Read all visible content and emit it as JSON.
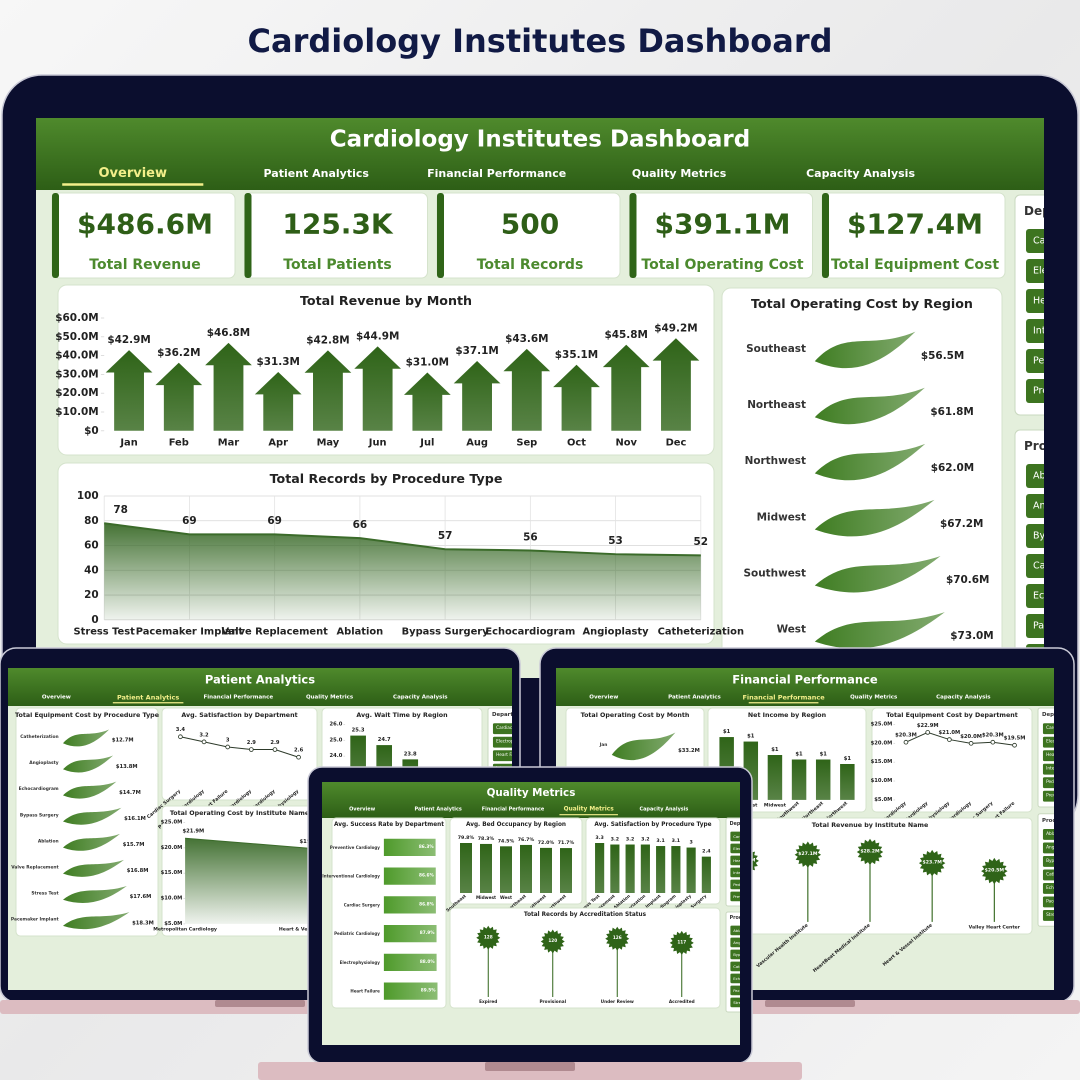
{
  "page_title": "Cardiology Institutes Dashboard",
  "tabs": [
    "Overview",
    "Patient Analytics",
    "Financial Performance",
    "Quality Metrics",
    "Capacity Analysis"
  ],
  "slicers": [
    {
      "title": "Department",
      "items": [
        "Cardiac Surgery",
        "Electrophysiology",
        "Heart Failure",
        "Interventional Cardiology",
        "Pediatric Cardiology",
        "Preventive Cardiology"
      ]
    },
    {
      "title": "Procedure",
      "items": [
        "Ablation",
        "Angioplasty",
        "Bypass Surgery",
        "Catheterization",
        "Echocardiogram",
        "Pacemaker Implant",
        "Stress Test"
      ]
    }
  ],
  "screens": [
    {
      "title": "Cardiology Institutes Dashboard",
      "active_tab": 0,
      "kpis": [
        {
          "value": "$486.6M",
          "label": "Total Revenue"
        },
        {
          "value": "125.3K",
          "label": "Total Patients"
        },
        {
          "value": "500",
          "label": "Total Records"
        },
        {
          "value": "$391.1M",
          "label": "Total Operating Cost"
        },
        {
          "value": "$127.4M",
          "label": "Total Equipment Cost"
        }
      ],
      "charts": [
        {
          "type": "bar",
          "shape": "arrow",
          "title": "Total Revenue by Month",
          "color": "#2f6418",
          "categories": [
            "Jan",
            "Feb",
            "Mar",
            "Apr",
            "May",
            "Jun",
            "Jul",
            "Aug",
            "Sep",
            "Oct",
            "Nov",
            "Dec"
          ],
          "values": [
            42.9,
            36.2,
            46.8,
            31.3,
            42.8,
            44.9,
            31.0,
            37.1,
            43.6,
            35.1,
            45.8,
            49.2
          ],
          "value_labels": [
            "$42.9M",
            "$36.2M",
            "$46.8M",
            "$31.3M",
            "$42.8M",
            "$44.9M",
            "$31.0M",
            "$37.1M",
            "$43.6M",
            "$35.1M",
            "$45.8M",
            "$49.2M"
          ],
          "ylim": [
            0,
            60
          ],
          "yticks": [
            {
              "value": 0,
              "label": "$0"
            },
            {
              "value": 10,
              "label": "$10.0M"
            },
            {
              "value": 20,
              "label": "$20.0M"
            },
            {
              "value": 30,
              "label": "$30.0M"
            },
            {
              "value": 40,
              "label": "$40.0M"
            },
            {
              "value": 50,
              "label": "$50.0M"
            },
            {
              "value": 60,
              "label": "$60.0M"
            }
          ]
        },
        {
          "type": "hbar",
          "shape": "leaf",
          "title": "Total Operating Cost by Region",
          "color": "#3f7d22",
          "categories": [
            "Southeast",
            "Northeast",
            "Northwest",
            "Midwest",
            "Southwest",
            "West"
          ],
          "values": [
            56.5,
            61.8,
            62.0,
            67.2,
            70.6,
            73.0
          ],
          "value_labels": [
            "$56.5M",
            "$61.8M",
            "$62.0M",
            "$67.2M",
            "$70.6M",
            "$73.0M"
          ]
        },
        {
          "type": "area",
          "title": "Total Records by Procedure Type",
          "color": "#3b6b2a",
          "grid": true,
          "categories": [
            "Stress Test",
            "Pacemaker Implant",
            "Valve Replacement",
            "Ablation",
            "Bypass Surgery",
            "Echocardiogram",
            "Angioplasty",
            "Catheterization"
          ],
          "values": [
            78,
            69,
            69,
            66,
            57,
            56,
            53,
            52
          ],
          "ylim": [
            0,
            100
          ],
          "yticks": [
            0,
            20,
            40,
            60,
            80,
            100
          ]
        }
      ]
    },
    {
      "title": "Patient Analytics",
      "active_tab": 1,
      "charts": [
        {
          "type": "hbar",
          "shape": "leaf",
          "title": "Total Equipment Cost by Procedure Type",
          "color": "#3f7d22",
          "categories": [
            "Catheterization",
            "Angioplasty",
            "Echocardiogram",
            "Bypass Surgery",
            "Ablation",
            "Valve Replacement",
            "Stress Test",
            "Pacemaker Implant"
          ],
          "values": [
            12.7,
            13.8,
            14.7,
            16.1,
            15.7,
            16.8,
            17.6,
            18.3
          ],
          "value_labels": [
            "$12.7M",
            "$13.8M",
            "$14.7M",
            "$16.1M",
            "$15.7M",
            "$16.8M",
            "$17.6M",
            "$18.3M"
          ]
        },
        {
          "type": "line",
          "title": "Avg. Satisfaction by Department",
          "color": "#2d3a2a",
          "categories": [
            "Cardiac Surgery",
            "Preventive Cardiology",
            "Heart Failure",
            "Pediatric Cardiology",
            "Interventional Cardiology",
            "Electrophysiology"
          ],
          "values": [
            3.4,
            3.2,
            3.0,
            2.9,
            2.9,
            2.6
          ]
        },
        {
          "type": "bar",
          "title": "Avg. Wait Time by Region",
          "color": "#2f6418",
          "categories": [
            null,
            null,
            null,
            null,
            null
          ],
          "values": [
            25.3,
            24.7,
            23.8,
            22.7,
            22.5
          ],
          "ylim": [
            22,
            26
          ],
          "yticks": [
            {
              "value": 22,
              "label": "22.0"
            },
            {
              "value": 23,
              "label": "23.0"
            },
            {
              "value": 24,
              "label": "24.0"
            },
            {
              "value": 25,
              "label": "25.0"
            },
            {
              "value": 26,
              "label": "26.0"
            }
          ]
        },
        {
          "type": "area",
          "title": "Total Operating Cost by Institute Name",
          "color": "#3b6b2a",
          "categories": [
            "Metropolitan Cardiology",
            "Heart & Vessel Institute"
          ],
          "values": [
            21.9,
            19.9
          ],
          "value_labels": [
            "$21.9M",
            "$19.9M"
          ],
          "ylim": [
            5,
            25
          ],
          "yticks": [
            {
              "value": 5,
              "label": "$5.0M"
            },
            {
              "value": 10,
              "label": "$10.0M"
            },
            {
              "value": 15,
              "label": "$15.0M"
            },
            {
              "value": 20,
              "label": "$20.0M"
            },
            {
              "value": 25,
              "label": "$25.0M"
            }
          ]
        }
      ]
    },
    {
      "title": "Financial Performance",
      "active_tab": 2,
      "charts": [
        {
          "type": "hbar",
          "shape": "leaf",
          "title": "Total Operating Cost by Month",
          "color": "#3f7d22",
          "categories": [
            "Jan",
            "Feb"
          ],
          "values": [
            33.2,
            30.3
          ],
          "value_labels": [
            "$33.2M",
            "$30.3M"
          ]
        },
        {
          "type": "bar",
          "title": "Net Income by Region",
          "color": "#2f6418",
          "categories": [
            "Southeast",
            "West",
            "Midwest",
            "Southwest",
            "Northeast",
            "Northwest"
          ],
          "values": [
            1.4,
            1.3,
            1.0,
            0.9,
            0.9,
            0.8
          ],
          "value_labels": [
            "$1",
            "$1",
            "$1",
            "$1",
            "$1",
            "$1"
          ]
        },
        {
          "type": "line",
          "title": "Total Equipment Cost by Department",
          "color": "#2d3a2a",
          "categories": [
            "Preventive Cardiology",
            "Interventional Cardiology",
            "Electrophysiology",
            "Pediatric Cardiology",
            "Cardiac Surgery",
            "Heart Failure"
          ],
          "values": [
            20.3,
            22.9,
            21.0,
            20.0,
            20.3,
            19.5
          ],
          "value_labels": [
            "$20.3M",
            "$22.9M",
            "$21.0M",
            "$20.0M",
            "$20.3M",
            "$19.5M"
          ],
          "ylim": [
            5,
            25
          ],
          "yticks": [
            {
              "value": 5,
              "label": "$5.0M"
            },
            {
              "value": 10,
              "label": "$10.0M"
            },
            {
              "value": 15,
              "label": "$15.0M"
            },
            {
              "value": 20,
              "label": "$20.0M"
            },
            {
              "value": 25,
              "label": "$25.0M"
            }
          ]
        },
        {
          "type": "lollipop",
          "title": "Total Revenue by Institute Name",
          "color": "#2f6418",
          "categories": [
            "Metropolitan Cardiology",
            "Vascular Health Institute",
            "HeartBeat Medical Institute",
            "Heart & Vessel Institute",
            "Valley Heart Center"
          ],
          "values": [
            24.6,
            27.1,
            28.2,
            23.7,
            20.5
          ],
          "value_labels": [
            "$24.6M",
            "$27.1M",
            "$28.2M",
            "$23.7M",
            "$20.5M"
          ]
        }
      ]
    },
    {
      "title": "Quality Metrics",
      "active_tab": 3,
      "charts": [
        {
          "type": "hbar",
          "title": "Avg. Success Rate by Department",
          "color": "#4e9a2a",
          "categories": [
            "Preventive Cardiology",
            "Interventional Cardiology",
            "Cardiac Surgery",
            "Pediatric Cardiology",
            "Electrophysiology",
            "Heart Failure"
          ],
          "values": [
            86.3,
            86.6,
            86.8,
            87.9,
            88.0,
            89.5
          ],
          "value_labels": [
            "86.3%",
            "86.6%",
            "86.8%",
            "87.9%",
            "88.0%",
            "89.5%"
          ]
        },
        {
          "type": "bar",
          "title": "Avg. Bed Occupancy by Region",
          "color": "#2f6418",
          "categories": [
            "Southeast",
            "Midwest",
            "West",
            "Northeast",
            "Southwest",
            "Northwest"
          ],
          "values": [
            79.8,
            78.3,
            74.5,
            76.7,
            72.0,
            71.7
          ],
          "value_labels": [
            "79.8%",
            "78.3%",
            "74.5%",
            "76.7%",
            "72.0%",
            "71.7%"
          ]
        },
        {
          "type": "bar",
          "title": "Avg. Satisfaction by Procedure Type",
          "color": "#2f6418",
          "categories": [
            "Stress Test",
            "Valve Replacement",
            "Ablation",
            "Catheterization",
            "Pacemaker Implant",
            "Echocardiogram",
            "Angioplasty",
            "Bypass Surgery"
          ],
          "values": [
            3.3,
            3.2,
            3.2,
            3.2,
            3.1,
            3.1,
            3.0,
            2.4
          ]
        },
        {
          "type": "lollipop",
          "title": "Total Records by Accreditation Status",
          "color": "#2f6418",
          "categories": [
            "Expired",
            "Provisional",
            "Under Review",
            "Accredited"
          ],
          "values": [
            128,
            120,
            126,
            117
          ]
        }
      ]
    }
  ]
}
